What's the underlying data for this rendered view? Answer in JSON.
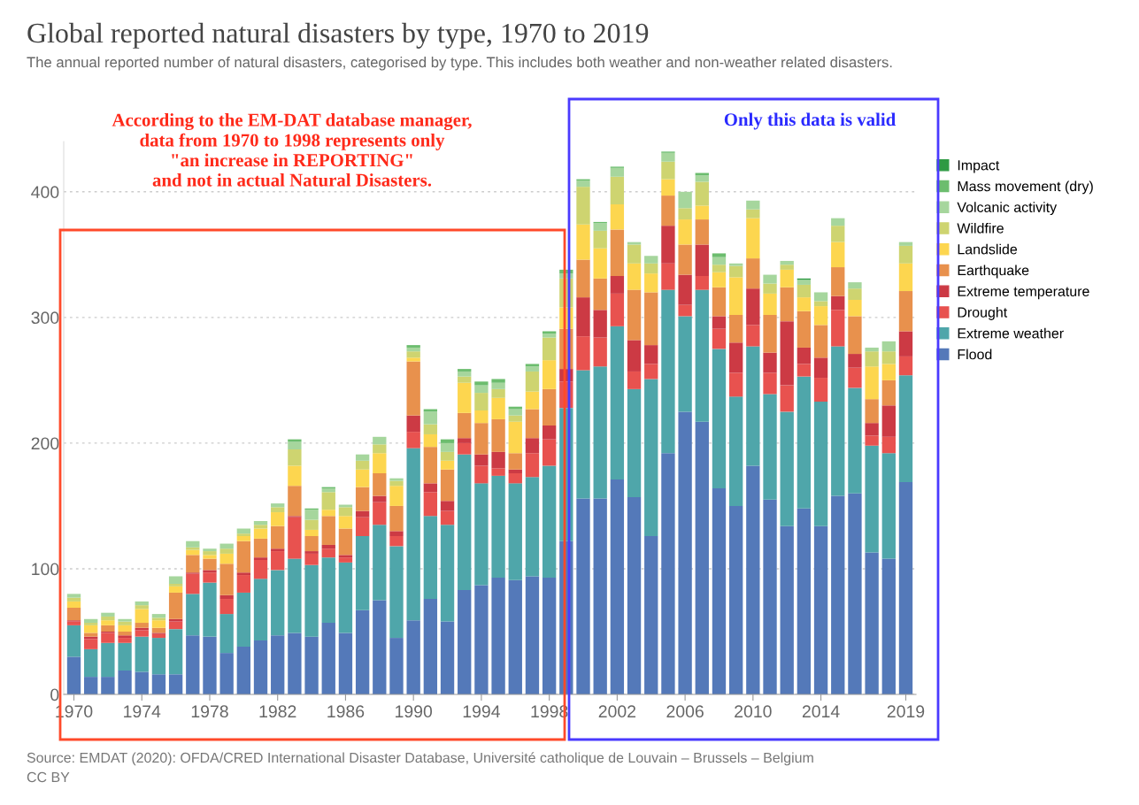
{
  "chart_data": {
    "type": "bar",
    "stacked": true,
    "title": "Global reported natural disasters by type, 1970 to 2019",
    "subtitle": "The annual reported number of natural disasters, categorised by type. This includes both weather and non-weather related disasters.",
    "annotations": [
      "According to the EM-DAT database manager,\ndata from 1970 to 1998 represents only\n\"an increase in REPORTING\"\nand not in actual Natural Disasters.",
      "Only this data is valid",
      "Source: EMDAT (2020): OFDA/CRED International Disaster Database, Université catholique de Louvain – Brussels – Belgium",
      "CC BY"
    ],
    "x": [
      1970,
      1971,
      1972,
      1973,
      1974,
      1975,
      1976,
      1977,
      1978,
      1979,
      1980,
      1981,
      1982,
      1983,
      1984,
      1985,
      1986,
      1987,
      1988,
      1989,
      1990,
      1991,
      1992,
      1993,
      1994,
      1995,
      1996,
      1997,
      1998,
      1999,
      2000,
      2001,
      2002,
      2003,
      2004,
      2005,
      2006,
      2007,
      2008,
      2009,
      2010,
      2011,
      2012,
      2013,
      2014,
      2015,
      2016,
      2017,
      2018,
      2019
    ],
    "xlim": [
      1969.4,
      2019.6
    ],
    "xticks": [
      1970,
      1974,
      1978,
      1982,
      1986,
      1990,
      1994,
      1998,
      2002,
      2006,
      2010,
      2014,
      2019
    ],
    "ylim": [
      0,
      440
    ],
    "yticks": [
      0,
      100,
      200,
      300,
      400
    ],
    "grid": "y",
    "legend": "right",
    "series": [
      {
        "name": "Flood",
        "color": "#5479b9",
        "values": [
          30,
          14,
          14,
          19,
          18,
          16,
          16,
          47,
          46,
          33,
          38,
          43,
          47,
          49,
          46,
          57,
          49,
          67,
          75,
          45,
          59,
          76,
          58,
          83,
          87,
          93,
          91,
          94,
          93,
          122,
          156,
          156,
          171,
          157,
          126,
          192,
          225,
          217,
          164,
          150,
          182,
          155,
          134,
          148,
          134,
          158,
          160,
          113,
          108,
          169
        ]
      },
      {
        "name": "Extreme weather",
        "color": "#4fa6aa",
        "values": [
          25,
          22,
          27,
          22,
          28,
          29,
          36,
          33,
          43,
          31,
          43,
          49,
          52,
          59,
          57,
          52,
          56,
          59,
          60,
          73,
          137,
          66,
          77,
          108,
          81,
          81,
          77,
          79,
          89,
          106,
          102,
          105,
          122,
          86,
          125,
          130,
          76,
          105,
          111,
          87,
          95,
          84,
          91,
          105,
          99,
          119,
          84,
          85,
          84,
          85
        ]
      },
      {
        "name": "Drought",
        "color": "#e8524f",
        "values": [
          3,
          8,
          8,
          4,
          5,
          3,
          6,
          16,
          8,
          12,
          14,
          15,
          15,
          33,
          9,
          7,
          4,
          15,
          18,
          8,
          13,
          19,
          11,
          9,
          14,
          6,
          8,
          19,
          21,
          21,
          27,
          23,
          26,
          14,
          12,
          21,
          9,
          11,
          16,
          19,
          17,
          17,
          21,
          10,
          19,
          29,
          16,
          8,
          13,
          15
        ]
      },
      {
        "name": "Extreme temperature",
        "color": "#cc3a44",
        "values": [
          1,
          2,
          1,
          2,
          2,
          1,
          2,
          1,
          2,
          3,
          2,
          2,
          2,
          1,
          2,
          3,
          2,
          5,
          5,
          4,
          13,
          7,
          8,
          4,
          9,
          13,
          3,
          12,
          11,
          10,
          31,
          22,
          14,
          25,
          15,
          30,
          24,
          25,
          10,
          24,
          29,
          16,
          51,
          13,
          16,
          11,
          11,
          10,
          25,
          20
        ]
      },
      {
        "name": "Earthquake",
        "color": "#e8914d",
        "values": [
          10,
          3,
          5,
          3,
          4,
          4,
          21,
          14,
          9,
          25,
          25,
          15,
          18,
          24,
          12,
          23,
          21,
          19,
          18,
          20,
          43,
          29,
          25,
          20,
          25,
          26,
          13,
          23,
          29,
          32,
          30,
          25,
          37,
          40,
          42,
          24,
          24,
          20,
          23,
          22,
          24,
          30,
          27,
          29,
          26,
          23,
          30,
          19,
          20,
          32
        ]
      },
      {
        "name": "Landslide",
        "color": "#fdd64f",
        "values": [
          5,
          6,
          4,
          5,
          11,
          6,
          5,
          4,
          3,
          8,
          4,
          8,
          11,
          16,
          5,
          5,
          10,
          14,
          16,
          16,
          3,
          10,
          7,
          24,
          10,
          17,
          25,
          14,
          23,
          17,
          28,
          24,
          20,
          21,
          15,
          13,
          20,
          11,
          12,
          30,
          32,
          17,
          14,
          11,
          15,
          20,
          13,
          26,
          13,
          22
        ]
      },
      {
        "name": "Wildfire",
        "color": "#ced470",
        "values": [
          3,
          2,
          3,
          3,
          3,
          2,
          2,
          2,
          3,
          4,
          2,
          3,
          4,
          13,
          8,
          14,
          7,
          7,
          7,
          4,
          5,
          8,
          7,
          5,
          14,
          7,
          5,
          16,
          18,
          23,
          30,
          14,
          22,
          15,
          8,
          14,
          9,
          19,
          6,
          9,
          7,
          8,
          4,
          10,
          4,
          13,
          9,
          12,
          10,
          14
        ]
      },
      {
        "name": "Volcanic activity",
        "color": "#a6d69d",
        "values": [
          3,
          3,
          3,
          2,
          3,
          3,
          6,
          5,
          2,
          4,
          4,
          3,
          3,
          6,
          8,
          3,
          2,
          5,
          6,
          2,
          3,
          10,
          7,
          4,
          6,
          5,
          5,
          4,
          3,
          4,
          5,
          6,
          7,
          2,
          6,
          7,
          13,
          5,
          6,
          2,
          7,
          7,
          3,
          4,
          7,
          6,
          5,
          3,
          8,
          3
        ]
      },
      {
        "name": "Mass movement (dry)",
        "color": "#6cbd6e",
        "values": [
          0,
          0,
          0,
          0,
          0,
          0,
          0,
          0,
          0,
          0,
          0,
          0,
          0,
          2,
          1,
          1,
          0,
          0,
          0,
          0,
          2,
          2,
          3,
          2,
          3,
          3,
          2,
          2,
          2,
          3,
          1,
          1,
          1,
          0,
          0,
          1,
          0,
          2,
          3,
          0,
          0,
          0,
          0,
          0,
          0,
          0,
          0,
          0,
          0,
          0
        ]
      },
      {
        "name": "Impact",
        "color": "#2e9a43",
        "values": [
          0,
          0,
          0,
          0,
          0,
          0,
          0,
          0,
          0,
          0,
          0,
          0,
          0,
          0,
          0,
          0,
          0,
          0,
          0,
          0,
          0,
          0,
          0,
          0,
          0,
          0,
          0,
          0,
          0,
          0,
          0,
          0,
          0,
          0,
          0,
          0,
          0,
          0,
          0,
          0,
          0,
          0,
          0,
          1,
          0,
          0,
          0,
          0,
          0,
          0
        ]
      }
    ]
  }
}
